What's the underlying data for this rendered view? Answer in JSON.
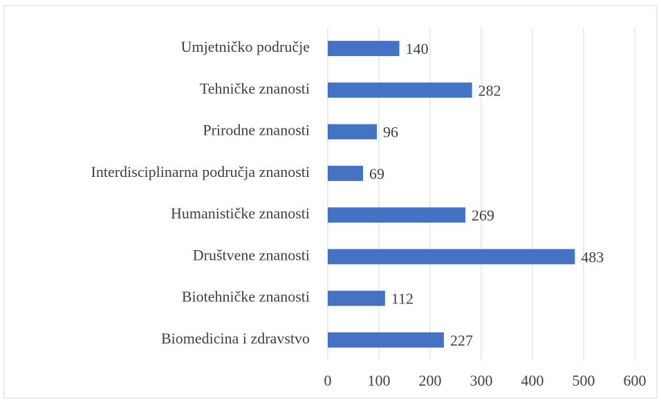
{
  "chart_data": {
    "type": "barh",
    "categories": [
      "Umjetničko područje",
      "Tehničke znanosti",
      "Prirodne znanosti",
      "Interdisciplinarna područja znanosti",
      "Humanističke znanosti",
      "Društvene znanosti",
      "Biotehničke znanosti",
      "Biomedicina i zdravstvo"
    ],
    "values": [
      140,
      282,
      96,
      69,
      269,
      483,
      112,
      227
    ],
    "color": "#4472c4",
    "xlim": [
      0,
      600
    ],
    "xticks": [
      0,
      100,
      200,
      300,
      400,
      500,
      600
    ],
    "grid": true
  }
}
